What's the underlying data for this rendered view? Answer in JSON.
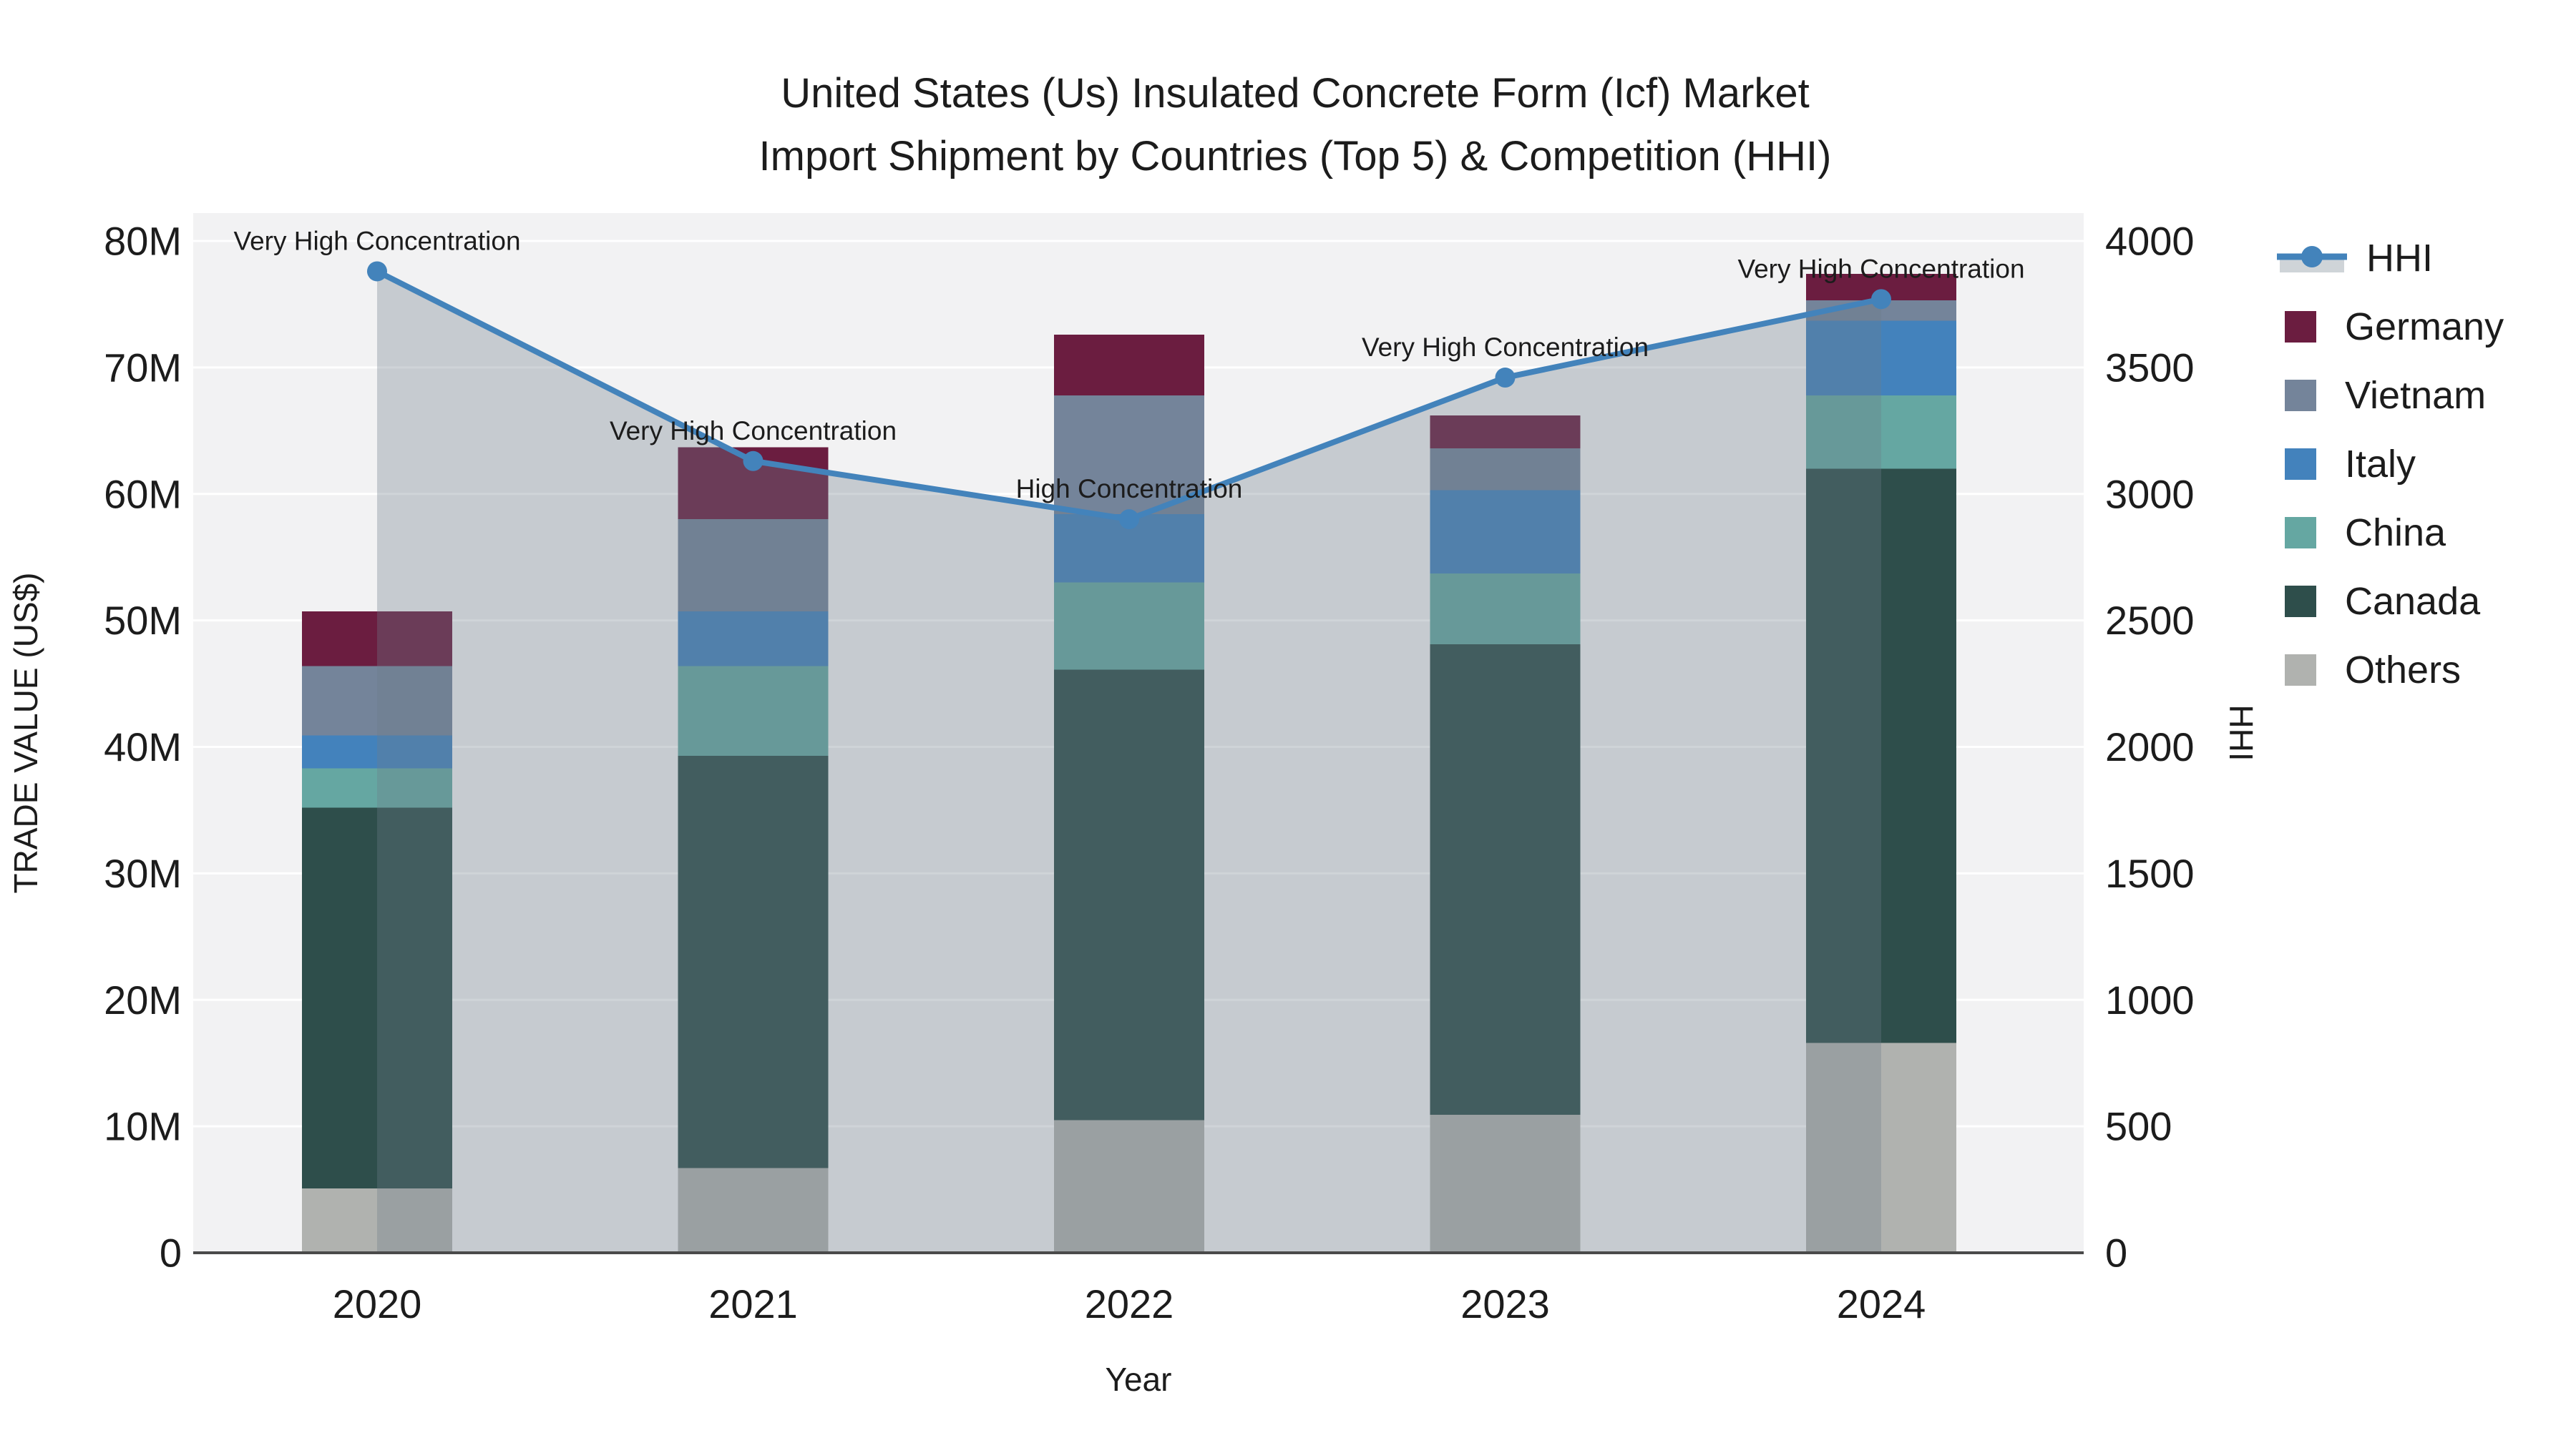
{
  "title": {
    "line1": "United States (Us) Insulated Concrete Form (Icf) Market",
    "line2": "Import Shipment by Countries (Top 5) & Competition (HHI)"
  },
  "axes": {
    "y_left": {
      "title": "TRADE VALUE (US$)",
      "ticks": [
        "0",
        "10M",
        "20M",
        "30M",
        "40M",
        "50M",
        "60M",
        "70M",
        "80M"
      ],
      "max_millions": 80
    },
    "y_right": {
      "title": "HHI",
      "ticks": [
        "0",
        "500",
        "1000",
        "1500",
        "2000",
        "2500",
        "3000",
        "3500",
        "4000"
      ],
      "max": 4000
    },
    "x": {
      "title": "Year",
      "categories": [
        "2020",
        "2021",
        "2022",
        "2023",
        "2024"
      ]
    }
  },
  "legend": {
    "entries": [
      {
        "label": "HHI",
        "type": "line",
        "color": "#4383bb"
      },
      {
        "label": "Germany",
        "type": "swatch",
        "color": "#6b1d40"
      },
      {
        "label": "Vietnam",
        "type": "swatch",
        "color": "#74849a"
      },
      {
        "label": "Italy",
        "type": "swatch",
        "color": "#4382bc"
      },
      {
        "label": "China",
        "type": "swatch",
        "color": "#65a7a2"
      },
      {
        "label": "Canada",
        "type": "swatch",
        "color": "#2e4e4b"
      },
      {
        "label": "Others",
        "type": "swatch",
        "color": "#b0b2af"
      }
    ]
  },
  "colors": {
    "plot_background": "#f2f2f3",
    "gridline": "#ffffff",
    "axis_line": "#4a4a4a",
    "hhi_line": "#4383bb",
    "hhi_area_overlay": "#6e7c8a",
    "text": "#1c1c1c"
  },
  "chart_data": {
    "type": "bar+line",
    "title": "United States (Us) Insulated Concrete Form (Icf) Market Import Shipment by Countries (Top 5) & Competition (HHI)",
    "xlabel": "Year",
    "ylabel_left": "TRADE VALUE (US$)",
    "ylabel_right": "HHI",
    "ylim_left_millions": [
      0,
      80
    ],
    "ylim_right": [
      0,
      4000
    ],
    "categories": [
      "2020",
      "2021",
      "2022",
      "2023",
      "2024"
    ],
    "stack_order_note": "series listed bottom-to-top of the stacked bars, values in millions US$",
    "series": [
      {
        "name": "Others",
        "color": "#b0b2af",
        "values": [
          5.1,
          6.7,
          10.5,
          10.9,
          16.6
        ]
      },
      {
        "name": "Canada",
        "color": "#2e4e4b",
        "values": [
          30.1,
          32.6,
          35.6,
          37.2,
          45.4
        ]
      },
      {
        "name": "China",
        "color": "#65a7a2",
        "values": [
          3.1,
          7.1,
          6.9,
          5.6,
          5.8
        ]
      },
      {
        "name": "Italy",
        "color": "#4382bc",
        "values": [
          2.6,
          4.3,
          5.4,
          6.6,
          5.9
        ]
      },
      {
        "name": "Vietnam",
        "color": "#74849a",
        "values": [
          5.5,
          7.3,
          9.4,
          3.3,
          1.6
        ]
      },
      {
        "name": "Germany",
        "color": "#6b1d40",
        "values": [
          4.3,
          5.7,
          4.8,
          2.6,
          2.1
        ]
      }
    ],
    "bar_totals_millions": [
      50.7,
      63.7,
      72.6,
      66.2,
      77.4
    ],
    "hhi": {
      "name": "HHI",
      "values": [
        3880,
        3130,
        2900,
        3460,
        3770
      ],
      "line_color": "#4383bb",
      "area_fill": "#6e7c8a",
      "area_opacity": 0.33
    },
    "annotations": [
      {
        "category": "2020",
        "text": "Very High Concentration"
      },
      {
        "category": "2021",
        "text": "Very High Concentration"
      },
      {
        "category": "2022",
        "text": "High Concentration"
      },
      {
        "category": "2023",
        "text": "Very High Concentration"
      },
      {
        "category": "2024",
        "text": "Very High Concentration"
      }
    ],
    "legend_position": "right",
    "grid": true
  }
}
